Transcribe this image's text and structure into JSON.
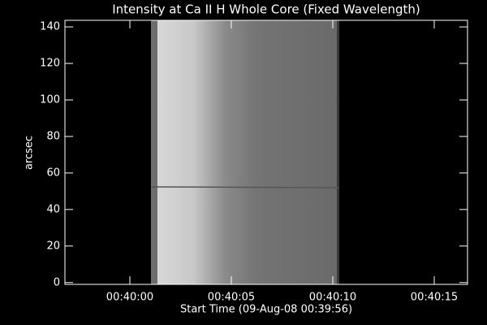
{
  "chart_data": {
    "type": "image",
    "title": "Intensity at Ca II H Whole Core (Fixed Wavelength)",
    "xlabel": "Start Time (09-Aug-08 00:39:56)",
    "ylabel": "arcsec",
    "xlim": [
      0.8,
      20.64
    ],
    "xticks": [
      {
        "value": 4,
        "label": "00:40:00"
      },
      {
        "value": 9,
        "label": "00:40:05"
      },
      {
        "value": 14,
        "label": "00:40:10"
      },
      {
        "value": 19,
        "label": "00:40:15"
      }
    ],
    "ylim": [
      -1,
      143.6
    ],
    "yticks": [
      0,
      20,
      40,
      60,
      80,
      100,
      120,
      140
    ]
  }
}
